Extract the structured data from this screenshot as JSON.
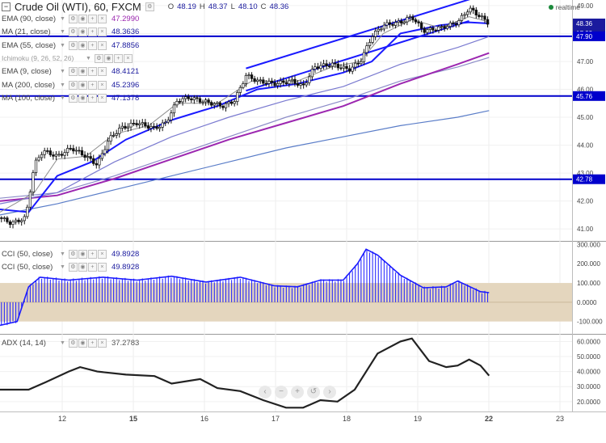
{
  "header": {
    "collapse_icon": "minus-square",
    "title": "Crude Oil (WTI), 60, FXCM",
    "open_label": "O",
    "open": "48.19",
    "high_label": "H",
    "high": "48.37",
    "low_label": "L",
    "low": "48.10",
    "close_label": "C",
    "close": "48.36",
    "realtime": "realtime",
    "realtime_color": "#1c8a3c"
  },
  "main_indicators": [
    {
      "name": "EMA (90, close)",
      "value": "47.2990",
      "color": "#9c27b0"
    },
    {
      "name": "MA (21, close)",
      "value": "48.3636",
      "color": "#1a1a9e"
    },
    {
      "name": "EMA (55, close)",
      "value": "47.8856",
      "color": "#1a1a9e"
    },
    {
      "name": "Ichimoku (9, 26, 52, 26)",
      "value": "",
      "color": "#8a8a8a"
    },
    {
      "name": "EMA (9, close)",
      "value": "48.4121",
      "color": "#1a1a9e"
    },
    {
      "name": "MA (200, close)",
      "value": "45.2396",
      "color": "#1a1a9e"
    },
    {
      "name": "MA (100, close)",
      "value": "47.1378",
      "color": "#1a1a9e"
    }
  ],
  "cci_indicators": [
    {
      "name": "CCI (50, close)",
      "value": "49.8928",
      "color": "#1a1a9e"
    },
    {
      "name": "CCI (50, close)",
      "value": "49.8928",
      "color": "#1a1a9e"
    }
  ],
  "adx_indicator": {
    "name": "ADX (14, 14)",
    "value": "37.2783",
    "color": "#555555"
  },
  "legend_button_icons": [
    "settings-icon",
    "visibility-icon",
    "add-icon",
    "close-icon"
  ],
  "nav_icons": [
    "scroll-left-icon",
    "scroll-right-icon",
    "zoom-out-icon",
    "zoom-in-icon",
    "reset-icon"
  ],
  "colors": {
    "candle": "#111111",
    "channel": "#1a1aff",
    "level_line": "#0000cc",
    "ema90": "#9c27b0",
    "cci": "#1a1aff",
    "cci_band": "#e4d6be",
    "adx": "#222222",
    "ma200": "#5a7dc8"
  },
  "chart_data": [
    {
      "type": "line",
      "title": "Crude Oil (WTI), 60, FXCM",
      "x_tick_labels": [
        "12",
        "15",
        "16",
        "17",
        "18",
        "19",
        "22",
        "23"
      ],
      "y_tick_labels": [
        "41.00",
        "42.00",
        "43.00",
        "44.00",
        "45.00",
        "46.00",
        "47.00",
        "48.00",
        "49.00"
      ],
      "ylim": [
        40.6,
        49.2
      ],
      "price_labels": [
        "48.36",
        "17:23",
        "47.90",
        "45.76",
        "42.78"
      ],
      "horizontal_levels": [
        47.9,
        45.76,
        42.78
      ],
      "channel_lines": [
        {
          "from": [
            0.43,
            46.75
          ],
          "to": [
            0.825,
            49.25
          ]
        },
        {
          "from": [
            0.43,
            45.95
          ],
          "to": [
            0.82,
            48.45
          ]
        }
      ],
      "close_path": [
        {
          "t": 0.0,
          "v": 41.4
        },
        {
          "t": 0.02,
          "v": 41.2
        },
        {
          "t": 0.045,
          "v": 41.4
        },
        {
          "t": 0.06,
          "v": 43.3
        },
        {
          "t": 0.075,
          "v": 43.8
        },
        {
          "t": 0.1,
          "v": 43.6
        },
        {
          "t": 0.125,
          "v": 43.9
        },
        {
          "t": 0.15,
          "v": 43.6
        },
        {
          "t": 0.17,
          "v": 43.3
        },
        {
          "t": 0.19,
          "v": 44.2
        },
        {
          "t": 0.21,
          "v": 44.6
        },
        {
          "t": 0.24,
          "v": 44.8
        },
        {
          "t": 0.27,
          "v": 44.6
        },
        {
          "t": 0.29,
          "v": 44.8
        },
        {
          "t": 0.3,
          "v": 45.2
        },
        {
          "t": 0.31,
          "v": 45.6
        },
        {
          "t": 0.33,
          "v": 45.7
        },
        {
          "t": 0.37,
          "v": 45.5
        },
        {
          "t": 0.39,
          "v": 45.4
        },
        {
          "t": 0.41,
          "v": 45.6
        },
        {
          "t": 0.43,
          "v": 46.5
        },
        {
          "t": 0.45,
          "v": 46.3
        },
        {
          "t": 0.48,
          "v": 46.2
        },
        {
          "t": 0.51,
          "v": 46.3
        },
        {
          "t": 0.53,
          "v": 46.1
        },
        {
          "t": 0.55,
          "v": 46.8
        },
        {
          "t": 0.58,
          "v": 46.9
        },
        {
          "t": 0.61,
          "v": 46.7
        },
        {
          "t": 0.63,
          "v": 47.0
        },
        {
          "t": 0.65,
          "v": 47.9
        },
        {
          "t": 0.67,
          "v": 48.3
        },
        {
          "t": 0.7,
          "v": 48.4
        },
        {
          "t": 0.72,
          "v": 48.6
        },
        {
          "t": 0.74,
          "v": 48.1
        },
        {
          "t": 0.77,
          "v": 48.2
        },
        {
          "t": 0.8,
          "v": 48.4
        },
        {
          "t": 0.82,
          "v": 48.9
        },
        {
          "t": 0.84,
          "v": 48.6
        },
        {
          "t": 0.855,
          "v": 48.36
        }
      ],
      "ema9": [
        {
          "t": 0.0,
          "v": 41.6
        },
        {
          "t": 0.06,
          "v": 42.3
        },
        {
          "t": 0.1,
          "v": 43.5
        },
        {
          "t": 0.15,
          "v": 43.6
        },
        {
          "t": 0.2,
          "v": 44.4
        },
        {
          "t": 0.26,
          "v": 44.7
        },
        {
          "t": 0.31,
          "v": 45.5
        },
        {
          "t": 0.38,
          "v": 45.5
        },
        {
          "t": 0.44,
          "v": 46.3
        },
        {
          "t": 0.52,
          "v": 46.3
        },
        {
          "t": 0.58,
          "v": 46.8
        },
        {
          "t": 0.63,
          "v": 47.0
        },
        {
          "t": 0.67,
          "v": 48.0
        },
        {
          "t": 0.72,
          "v": 48.5
        },
        {
          "t": 0.77,
          "v": 48.2
        },
        {
          "t": 0.82,
          "v": 48.6
        },
        {
          "t": 0.855,
          "v": 48.41
        }
      ],
      "ema21": [
        {
          "t": 0.0,
          "v": 41.7
        },
        {
          "t": 0.05,
          "v": 41.6
        },
        {
          "t": 0.1,
          "v": 42.9
        },
        {
          "t": 0.16,
          "v": 43.4
        },
        {
          "t": 0.22,
          "v": 44.2
        },
        {
          "t": 0.3,
          "v": 44.9
        },
        {
          "t": 0.38,
          "v": 45.4
        },
        {
          "t": 0.45,
          "v": 46.0
        },
        {
          "t": 0.52,
          "v": 46.2
        },
        {
          "t": 0.6,
          "v": 46.6
        },
        {
          "t": 0.65,
          "v": 47.0
        },
        {
          "t": 0.7,
          "v": 48.0
        },
        {
          "t": 0.77,
          "v": 48.3
        },
        {
          "t": 0.82,
          "v": 48.4
        },
        {
          "t": 0.855,
          "v": 48.36
        }
      ],
      "ema55": [
        {
          "t": 0.0,
          "v": 41.9
        },
        {
          "t": 0.1,
          "v": 42.3
        },
        {
          "t": 0.2,
          "v": 43.4
        },
        {
          "t": 0.3,
          "v": 44.3
        },
        {
          "t": 0.4,
          "v": 45.0
        },
        {
          "t": 0.5,
          "v": 45.6
        },
        {
          "t": 0.6,
          "v": 46.1
        },
        {
          "t": 0.7,
          "v": 46.9
        },
        {
          "t": 0.8,
          "v": 47.5
        },
        {
          "t": 0.855,
          "v": 47.89
        }
      ],
      "ema90": [
        {
          "t": 0.0,
          "v": 42.0
        },
        {
          "t": 0.1,
          "v": 42.2
        },
        {
          "t": 0.2,
          "v": 42.8
        },
        {
          "t": 0.3,
          "v": 43.5
        },
        {
          "t": 0.4,
          "v": 44.2
        },
        {
          "t": 0.5,
          "v": 44.8
        },
        {
          "t": 0.6,
          "v": 45.4
        },
        {
          "t": 0.7,
          "v": 46.2
        },
        {
          "t": 0.8,
          "v": 46.9
        },
        {
          "t": 0.855,
          "v": 47.3
        }
      ],
      "ma100": [
        {
          "t": 0.0,
          "v": 42.1
        },
        {
          "t": 0.1,
          "v": 42.3
        },
        {
          "t": 0.2,
          "v": 42.9
        },
        {
          "t": 0.3,
          "v": 43.6
        },
        {
          "t": 0.4,
          "v": 44.3
        },
        {
          "t": 0.5,
          "v": 45.0
        },
        {
          "t": 0.6,
          "v": 45.6
        },
        {
          "t": 0.7,
          "v": 46.3
        },
        {
          "t": 0.8,
          "v": 46.8
        },
        {
          "t": 0.855,
          "v": 47.14
        }
      ],
      "ma200": [
        {
          "t": 0.0,
          "v": 41.5
        },
        {
          "t": 0.1,
          "v": 41.9
        },
        {
          "t": 0.2,
          "v": 42.4
        },
        {
          "t": 0.3,
          "v": 42.9
        },
        {
          "t": 0.4,
          "v": 43.4
        },
        {
          "t": 0.5,
          "v": 43.9
        },
        {
          "t": 0.6,
          "v": 44.3
        },
        {
          "t": 0.7,
          "v": 44.7
        },
        {
          "t": 0.8,
          "v": 45.0
        },
        {
          "t": 0.855,
          "v": 45.24
        }
      ]
    },
    {
      "type": "area",
      "title": "CCI (50, close)",
      "y_tick_labels": [
        "-100.000",
        "0.0000",
        "100.000",
        "200.000",
        "300.000"
      ],
      "ylim": [
        -160,
        310
      ],
      "band": [
        -100,
        100
      ],
      "values": [
        {
          "t": 0.0,
          "v": -120
        },
        {
          "t": 0.03,
          "v": -100
        },
        {
          "t": 0.05,
          "v": 80
        },
        {
          "t": 0.07,
          "v": 130
        },
        {
          "t": 0.12,
          "v": 115
        },
        {
          "t": 0.18,
          "v": 130
        },
        {
          "t": 0.24,
          "v": 115
        },
        {
          "t": 0.3,
          "v": 135
        },
        {
          "t": 0.36,
          "v": 105
        },
        {
          "t": 0.42,
          "v": 130
        },
        {
          "t": 0.48,
          "v": 85
        },
        {
          "t": 0.52,
          "v": 80
        },
        {
          "t": 0.56,
          "v": 115
        },
        {
          "t": 0.6,
          "v": 115
        },
        {
          "t": 0.625,
          "v": 200
        },
        {
          "t": 0.64,
          "v": 275
        },
        {
          "t": 0.66,
          "v": 245
        },
        {
          "t": 0.7,
          "v": 140
        },
        {
          "t": 0.74,
          "v": 75
        },
        {
          "t": 0.78,
          "v": 80
        },
        {
          "t": 0.8,
          "v": 110
        },
        {
          "t": 0.84,
          "v": 55
        },
        {
          "t": 0.855,
          "v": 50
        }
      ]
    },
    {
      "type": "line",
      "title": "ADX (14, 14)",
      "y_tick_labels": [
        "20.0000",
        "30.0000",
        "40.0000",
        "50.0000",
        "60.0000"
      ],
      "ylim": [
        14,
        64
      ],
      "values": [
        {
          "t": 0.0,
          "v": 28
        },
        {
          "t": 0.05,
          "v": 28
        },
        {
          "t": 0.08,
          "v": 33
        },
        {
          "t": 0.12,
          "v": 40
        },
        {
          "t": 0.14,
          "v": 43
        },
        {
          "t": 0.17,
          "v": 40
        },
        {
          "t": 0.22,
          "v": 38
        },
        {
          "t": 0.27,
          "v": 37
        },
        {
          "t": 0.3,
          "v": 32
        },
        {
          "t": 0.35,
          "v": 35
        },
        {
          "t": 0.38,
          "v": 29
        },
        {
          "t": 0.42,
          "v": 27
        },
        {
          "t": 0.46,
          "v": 21
        },
        {
          "t": 0.5,
          "v": 16
        },
        {
          "t": 0.53,
          "v": 16
        },
        {
          "t": 0.56,
          "v": 21
        },
        {
          "t": 0.59,
          "v": 20
        },
        {
          "t": 0.62,
          "v": 28
        },
        {
          "t": 0.66,
          "v": 52
        },
        {
          "t": 0.7,
          "v": 60
        },
        {
          "t": 0.72,
          "v": 62
        },
        {
          "t": 0.75,
          "v": 47
        },
        {
          "t": 0.78,
          "v": 43
        },
        {
          "t": 0.8,
          "v": 44
        },
        {
          "t": 0.82,
          "v": 48
        },
        {
          "t": 0.84,
          "v": 44
        },
        {
          "t": 0.855,
          "v": 37.3
        }
      ]
    }
  ]
}
